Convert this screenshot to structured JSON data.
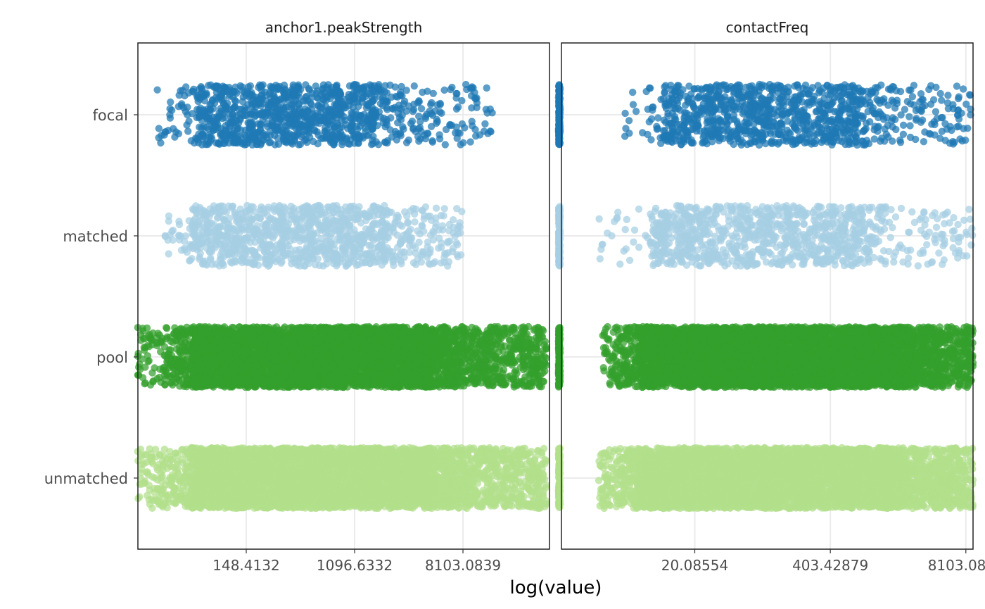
{
  "chart_data": {
    "type": "scatter",
    "subtype": "jitter-strip",
    "xlabel": "log(value)",
    "categories": [
      "focal",
      "matched",
      "pool",
      "unmatched"
    ],
    "colors": {
      "focal": "#1F78B4",
      "matched": "#A6CEE3",
      "pool": "#33A02C",
      "unmatched": "#B2DF8A"
    },
    "grid": true,
    "panels": [
      {
        "title": "anchor1.peakStrength",
        "x_scale": "log",
        "xlim": [
          20.1,
          40000
        ],
        "x_ticks": [
          148.4132,
          1096.6332,
          8103.0839
        ],
        "x_tick_labels": [
          "148.4132",
          "1096.6332",
          "8103.0839"
        ],
        "groups": [
          {
            "name": "focal",
            "count": 1100,
            "range": [
              28,
              14000
            ],
            "peak": [
              60,
              1500
            ],
            "jitter": 0.25
          },
          {
            "name": "matched",
            "count": 1100,
            "range": [
              33,
              8000
            ],
            "peak": [
              55,
              1800
            ],
            "jitter": 0.25
          },
          {
            "name": "pool",
            "count": 5200,
            "range": [
              20,
              38000
            ],
            "peak": [
              55,
              4000
            ],
            "jitter": 0.25
          },
          {
            "name": "unmatched",
            "count": 5200,
            "range": [
              20,
              38000
            ],
            "peak": [
              55,
              4000
            ],
            "jitter": 0.25
          }
        ]
      },
      {
        "title": "contactFreq",
        "x_scale": "log",
        "xlim": [
          1.05,
          9500
        ],
        "x_ticks": [
          20.08554,
          403.42879,
          8103.0839
        ],
        "x_tick_labels": [
          "20.08554",
          "403.42879",
          "8103.0839"
        ],
        "groups": [
          {
            "name": "focal",
            "count": 1050,
            "range": [
              4.2,
              9000
            ],
            "peak": [
              10,
              700
            ],
            "jitter": 0.25,
            "floor_value": 1.0
          },
          {
            "name": "matched",
            "count": 1050,
            "range": [
              2.4,
              9500
            ],
            "peak": [
              8,
              700
            ],
            "jitter": 0.25,
            "floor_value": 1.0
          },
          {
            "name": "pool",
            "count": 5200,
            "range": [
              2.6,
              9500
            ],
            "peak": [
              6,
              1400
            ],
            "jitter": 0.25,
            "floor_value": 1.0
          },
          {
            "name": "unmatched",
            "count": 5200,
            "range": [
              2.4,
              9500
            ],
            "peak": [
              6,
              1400
            ],
            "jitter": 0.25,
            "floor_value": 1.0
          }
        ]
      }
    ]
  }
}
